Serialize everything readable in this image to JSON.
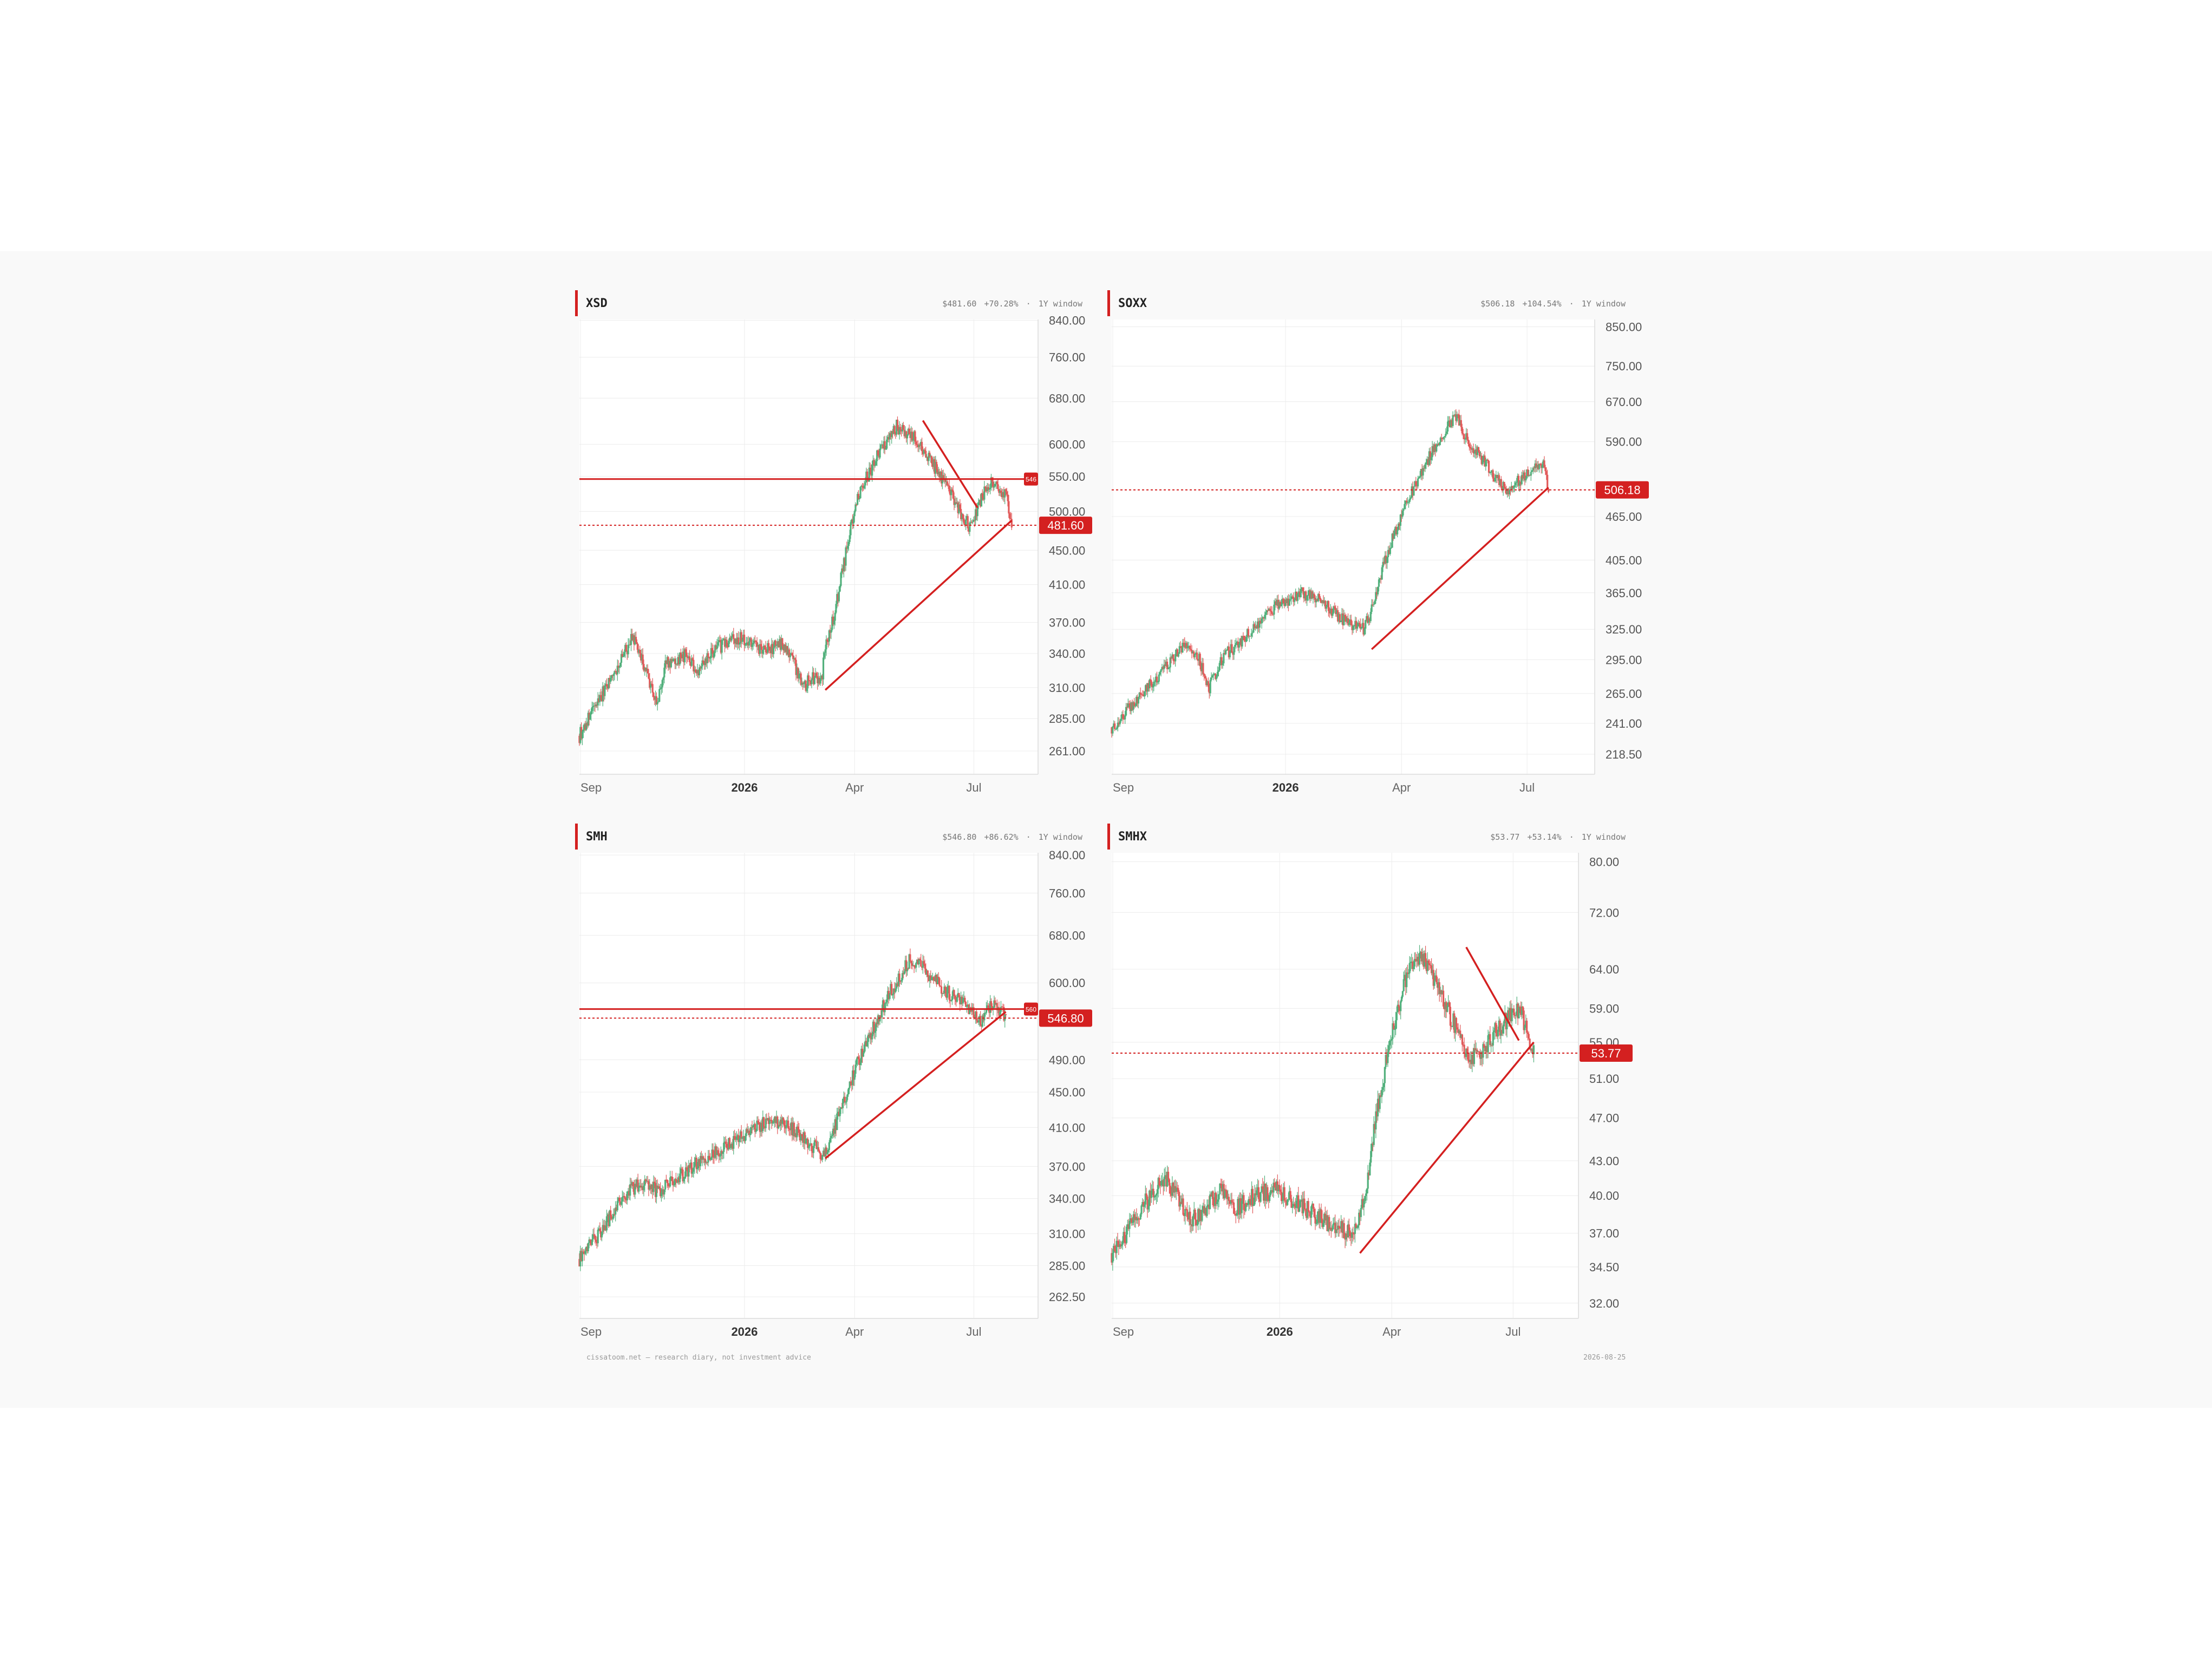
{
  "footer": {
    "left": "cissatoom.net — research diary, not investment advice",
    "right": "2026-08-25"
  },
  "colors": {
    "up": "#52b07c",
    "down": "#e15a5a",
    "accent": "#d42020",
    "grid": "#ececec",
    "axis": "#555555"
  },
  "chart_data": [
    {
      "type": "candlestick",
      "title": "XSD",
      "price": "$481.60",
      "change": "+70.28%",
      "window": "1Y window",
      "x_labels": [
        "Sep",
        "2026",
        "Apr",
        "Jul"
      ],
      "y_ticks": [
        "840.00",
        "760.00",
        "680.00",
        "600.00",
        "550.00",
        "500.00",
        "450.00",
        "410.00",
        "370.00",
        "340.00",
        "310.00",
        "285.00",
        "261.00"
      ],
      "scale": "log",
      "ylim": [
        245,
        842
      ],
      "series_path": [
        [
          0,
          272
        ],
        [
          20,
          300
        ],
        [
          40,
          330
        ],
        [
          55,
          355
        ],
        [
          70,
          320
        ],
        [
          80,
          295
        ],
        [
          88,
          330
        ],
        [
          110,
          338
        ],
        [
          120,
          325
        ],
        [
          140,
          345
        ],
        [
          165,
          355
        ],
        [
          190,
          342
        ],
        [
          210,
          350
        ],
        [
          230,
          312
        ],
        [
          240,
          318
        ],
        [
          248,
          316
        ],
        [
          252,
          345
        ],
        [
          262,
          380
        ],
        [
          272,
          440
        ],
        [
          285,
          520
        ],
        [
          305,
          580
        ],
        [
          325,
          630
        ],
        [
          343,
          612
        ],
        [
          355,
          585
        ],
        [
          368,
          555
        ],
        [
          380,
          525
        ],
        [
          392,
          495
        ],
        [
          400,
          478
        ],
        [
          412,
          520
        ],
        [
          425,
          545
        ],
        [
          437,
          520
        ],
        [
          443,
          481.6
        ]
      ],
      "current_price": 481.6,
      "current_label": "481.60",
      "resistance": 546,
      "resistance_label": "546",
      "trend_up": [
        [
          252,
          308
        ],
        [
          443,
          488
        ]
      ],
      "trend_down": [
        [
          352,
          640
        ],
        [
          408,
          505
        ]
      ]
    },
    {
      "type": "candlestick",
      "title": "SOXX",
      "price": "$506.18",
      "change": "+104.54%",
      "window": "1Y window",
      "x_labels": [
        "Sep",
        "2026",
        "Apr",
        "Jul"
      ],
      "y_ticks": [
        "850.00",
        "750.00",
        "670.00",
        "590.00",
        "465.00",
        "405.00",
        "365.00",
        "325.00",
        "295.00",
        "265.00",
        "241.00",
        "218.50"
      ],
      "scale": "log",
      "ylim": [
        205,
        870
      ],
      "series_path": [
        [
          0,
          238
        ],
        [
          25,
          260
        ],
        [
          50,
          285
        ],
        [
          70,
          310
        ],
        [
          85,
          295
        ],
        [
          95,
          270
        ],
        [
          110,
          300
        ],
        [
          125,
          310
        ],
        [
          140,
          330
        ],
        [
          160,
          350
        ],
        [
          185,
          365
        ],
        [
          205,
          355
        ],
        [
          225,
          335
        ],
        [
          245,
          325
        ],
        [
          255,
          350
        ],
        [
          265,
          400
        ],
        [
          280,
          460
        ],
        [
          300,
          530
        ],
        [
          320,
          600
        ],
        [
          335,
          640
        ],
        [
          347,
          590
        ],
        [
          360,
          560
        ],
        [
          372,
          530
        ],
        [
          385,
          500
        ],
        [
          395,
          520
        ],
        [
          405,
          535
        ],
        [
          420,
          550
        ],
        [
          425,
          506.18
        ]
      ],
      "current_price": 506.18,
      "current_label": "506.18",
      "trend_up": [
        [
          253,
          305
        ],
        [
          425,
          510
        ]
      ]
    },
    {
      "type": "candlestick",
      "title": "SMH",
      "price": "$546.80",
      "change": "+86.62%",
      "window": "1Y window",
      "x_labels": [
        "Sep",
        "2026",
        "Apr",
        "Jul"
      ],
      "y_ticks": [
        "840.00",
        "760.00",
        "680.00",
        "600.00",
        "490.00",
        "450.00",
        "410.00",
        "370.00",
        "340.00",
        "310.00",
        "285.00",
        "262.50"
      ],
      "scale": "log",
      "ylim": [
        248,
        845
      ],
      "series_path": [
        [
          0,
          290
        ],
        [
          20,
          310
        ],
        [
          40,
          335
        ],
        [
          55,
          350
        ],
        [
          70,
          355
        ],
        [
          80,
          345
        ],
        [
          95,
          355
        ],
        [
          110,
          365
        ],
        [
          130,
          380
        ],
        [
          150,
          390
        ],
        [
          175,
          405
        ],
        [
          195,
          420
        ],
        [
          215,
          410
        ],
        [
          235,
          395
        ],
        [
          250,
          380
        ],
        [
          265,
          420
        ],
        [
          280,
          470
        ],
        [
          300,
          530
        ],
        [
          320,
          590
        ],
        [
          340,
          640
        ],
        [
          355,
          620
        ],
        [
          372,
          590
        ],
        [
          390,
          575
        ],
        [
          400,
          555
        ],
        [
          412,
          545
        ],
        [
          425,
          570
        ],
        [
          437,
          546.8
        ]
      ],
      "current_price": 546.8,
      "current_label": "546.80",
      "resistance": 560,
      "resistance_label": "560",
      "trend_up": [
        [
          252,
          378
        ],
        [
          437,
          556
        ]
      ]
    },
    {
      "type": "candlestick",
      "title": "SMHX",
      "price": "$53.77",
      "change": "+53.14%",
      "window": "1Y window",
      "x_labels": [
        "Sep",
        "2026",
        "Apr",
        "Jul"
      ],
      "y_ticks": [
        "80.00",
        "72.00",
        "64.00",
        "59.00",
        "55.00",
        "51.00",
        "47.00",
        "43.00",
        "40.00",
        "37.00",
        "34.50",
        "32.00"
      ],
      "scale": "log",
      "ylim": [
        31,
        81.5
      ],
      "series_path": [
        [
          0,
          35.5
        ],
        [
          15,
          37
        ],
        [
          30,
          39
        ],
        [
          45,
          40.5
        ],
        [
          55,
          41.5
        ],
        [
          65,
          40
        ],
        [
          80,
          38
        ],
        [
          95,
          39
        ],
        [
          110,
          40.5
        ],
        [
          125,
          39
        ],
        [
          145,
          40
        ],
        [
          165,
          40.5
        ],
        [
          185,
          39.5
        ],
        [
          205,
          38.5
        ],
        [
          225,
          37.5
        ],
        [
          245,
          37
        ],
        [
          255,
          40
        ],
        [
          268,
          48
        ],
        [
          282,
          56
        ],
        [
          297,
          63
        ],
        [
          312,
          66
        ],
        [
          330,
          61
        ],
        [
          345,
          57
        ],
        [
          360,
          53
        ],
        [
          372,
          54
        ],
        [
          385,
          56
        ],
        [
          400,
          58
        ],
        [
          412,
          59
        ],
        [
          420,
          55
        ],
        [
          425,
          53.77
        ]
      ],
      "current_price": 53.77,
      "current_label": "53.77",
      "trend_up": [
        [
          250,
          35.5
        ],
        [
          425,
          55
        ]
      ],
      "trend_down": [
        [
          357,
          67
        ],
        [
          410,
          55.2
        ]
      ]
    }
  ]
}
